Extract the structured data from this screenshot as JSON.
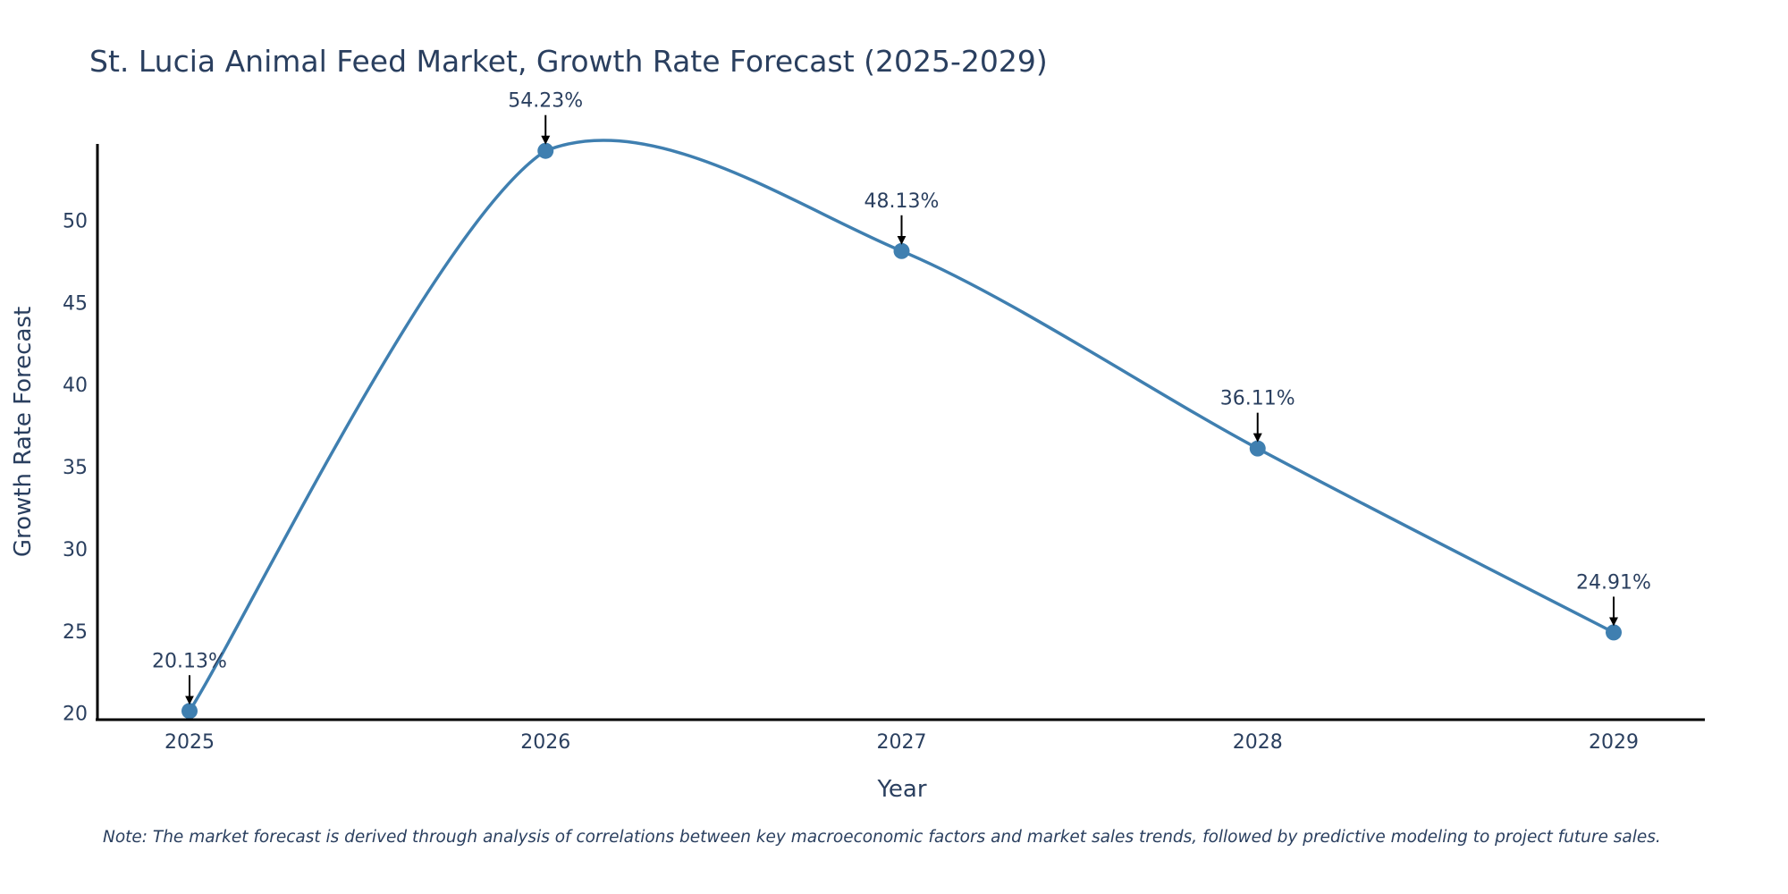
{
  "chart_data": {
    "type": "line",
    "title": "St. Lucia Animal Feed Market, Growth Rate Forecast (2025-2029)",
    "xlabel": "Year",
    "ylabel": "Growth Rate Forecast",
    "categories": [
      "2025",
      "2026",
      "2027",
      "2028",
      "2029"
    ],
    "series": [
      {
        "name": "Growth Rate Forecast",
        "values": [
          20.13,
          54.23,
          48.13,
          36.11,
          24.91
        ],
        "labels": [
          "20.13%",
          "54.23%",
          "48.13%",
          "36.11%",
          "24.91%"
        ]
      }
    ],
    "yticks": [
      20,
      25,
      30,
      35,
      40,
      45,
      50
    ],
    "ylim": [
      19.6,
      54.65
    ],
    "line_shape": "spline",
    "grid": false,
    "color": "#3f7fb0"
  },
  "note": "Note: The market forecast is derived through analysis of correlations between key macroeconomic factors and market sales trends, followed by predictive modeling to project future sales."
}
